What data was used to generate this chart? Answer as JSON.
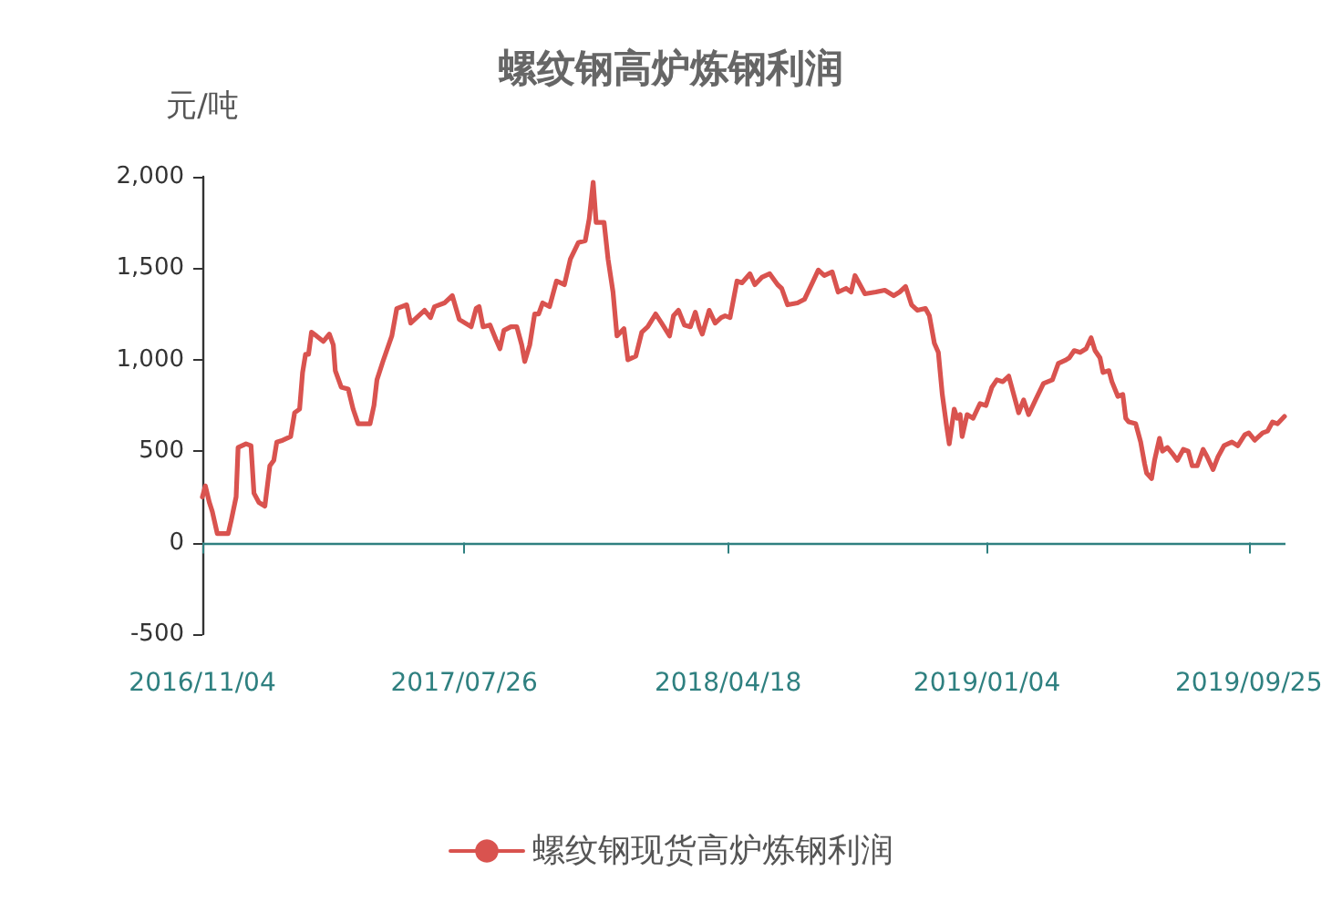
{
  "chart_data": {
    "type": "line",
    "title": "螺纹钢高炉炼钢利润",
    "ylabel": "元/吨",
    "x": [
      "2016-11-04",
      "2016-11-07",
      "2016-11-11",
      "2016-11-14",
      "2016-11-19",
      "2016-11-30",
      "2016-12-03",
      "2016-12-08",
      "2016-12-10",
      "2016-12-18",
      "2016-12-23",
      "2016-12-26",
      "2016-12-31",
      "2017-01-06",
      "2017-01-11",
      "2017-01-15",
      "2017-01-18",
      "2017-01-24",
      "2017-02-01",
      "2017-02-05",
      "2017-02-10",
      "2017-02-13",
      "2017-02-16",
      "2017-02-19",
      "2017-02-22",
      "2017-02-27",
      "2017-03-06",
      "2017-03-12",
      "2017-03-16",
      "2017-03-18",
      "2017-03-24",
      "2017-03-31",
      "2017-04-05",
      "2017-04-10",
      "2017-04-17",
      "2017-04-22",
      "2017-04-26",
      "2017-04-29",
      "2017-05-05",
      "2017-05-14",
      "2017-05-19",
      "2017-05-29",
      "2017-06-02",
      "2017-06-08",
      "2017-06-16",
      "2017-06-22",
      "2017-06-26",
      "2017-07-06",
      "2017-07-14",
      "2017-07-21",
      "2017-07-27",
      "2017-08-02",
      "2017-08-07",
      "2017-08-10",
      "2017-08-14",
      "2017-08-21",
      "2017-08-27",
      "2017-08-31",
      "2017-09-04",
      "2017-09-11",
      "2017-09-17",
      "2017-09-22",
      "2017-09-25",
      "2017-09-30",
      "2017-10-05",
      "2017-10-09",
      "2017-10-13",
      "2017-10-20",
      "2017-10-27",
      "2017-11-04",
      "2017-11-10",
      "2017-11-18",
      "2017-11-25",
      "2017-11-29",
      "2017-12-03",
      "2017-12-06",
      "2017-12-14",
      "2017-12-18",
      "2017-12-23",
      "2017-12-27",
      "2018-01-03",
      "2018-01-07",
      "2018-01-15",
      "2018-01-21",
      "2018-01-27",
      "2018-02-04",
      "2018-02-10",
      "2018-02-18",
      "2018-02-22",
      "2018-02-27",
      "2018-03-05",
      "2018-03-11",
      "2018-03-16",
      "2018-03-20",
      "2018-03-23",
      "2018-03-30",
      "2018-04-05",
      "2018-04-11",
      "2018-04-15",
      "2018-04-20",
      "2018-04-27",
      "2018-05-02",
      "2018-05-10",
      "2018-05-15",
      "2018-05-22",
      "2018-05-30",
      "2018-06-07",
      "2018-06-11",
      "2018-06-17",
      "2018-06-27",
      "2018-07-04",
      "2018-07-12",
      "2018-07-18",
      "2018-07-24",
      "2018-08-01",
      "2018-08-07",
      "2018-08-15",
      "2018-08-20",
      "2018-08-24",
      "2018-09-03",
      "2018-09-14",
      "2018-09-23",
      "2018-10-02",
      "2018-10-08",
      "2018-10-14",
      "2018-10-20",
      "2018-10-26",
      "2018-11-03",
      "2018-11-07",
      "2018-11-12",
      "2018-11-16",
      "2018-11-20",
      "2018-11-24",
      "2018-11-27",
      "2018-12-02",
      "2018-12-05",
      "2018-12-08",
      "2018-12-10",
      "2018-12-15",
      "2018-12-21",
      "2018-12-28",
      "2019-01-03",
      "2019-01-09",
      "2019-01-14",
      "2019-01-20",
      "2019-01-26",
      "2019-01-30",
      "2019-02-05",
      "2019-02-10",
      "2019-02-15",
      "2019-02-22",
      "2019-03-02",
      "2019-03-11",
      "2019-03-17",
      "2019-03-25",
      "2019-03-28",
      "2019-04-02",
      "2019-04-08",
      "2019-04-14",
      "2019-04-19",
      "2019-04-23",
      "2019-04-28",
      "2019-05-01",
      "2019-05-07",
      "2019-05-10",
      "2019-05-16",
      "2019-05-21",
      "2019-05-24",
      "2019-05-27",
      "2019-06-03",
      "2019-06-08",
      "2019-06-12",
      "2019-06-14",
      "2019-06-19",
      "2019-06-22",
      "2019-06-27",
      "2019-06-30",
      "2019-07-05",
      "2019-07-11",
      "2019-07-15",
      "2019-07-21",
      "2019-07-26",
      "2019-07-30",
      "2019-08-04",
      "2019-08-10",
      "2019-08-14",
      "2019-08-20",
      "2019-08-25",
      "2019-08-31",
      "2019-09-08",
      "2019-09-14",
      "2019-09-21",
      "2019-09-25",
      "2019-10-01",
      "2019-10-09",
      "2019-10-14",
      "2019-10-19",
      "2019-10-24",
      "2019-10-31"
    ],
    "series": [
      {
        "name": "螺纹钢现货高炉炼钢利润",
        "color": "#d9534f",
        "values": [
          250,
          310,
          220,
          170,
          50,
          50,
          120,
          250,
          520,
          540,
          530,
          270,
          220,
          200,
          420,
          450,
          550,
          560,
          580,
          710,
          730,
          930,
          1030,
          1030,
          1150,
          1130,
          1100,
          1140,
          1080,
          940,
          850,
          840,
          730,
          650,
          650,
          650,
          750,
          890,
          990,
          1130,
          1280,
          1300,
          1200,
          1230,
          1270,
          1230,
          1290,
          1310,
          1350,
          1220,
          1200,
          1180,
          1280,
          1290,
          1180,
          1190,
          1110,
          1060,
          1160,
          1180,
          1180,
          1080,
          990,
          1080,
          1250,
          1250,
          1310,
          1290,
          1430,
          1410,
          1550,
          1640,
          1650,
          1770,
          1970,
          1750,
          1750,
          1550,
          1370,
          1130,
          1170,
          1000,
          1020,
          1150,
          1180,
          1250,
          1200,
          1130,
          1240,
          1270,
          1190,
          1180,
          1260,
          1180,
          1140,
          1270,
          1200,
          1230,
          1240,
          1230,
          1430,
          1420,
          1470,
          1410,
          1450,
          1470,
          1410,
          1390,
          1300,
          1310,
          1330,
          1420,
          1490,
          1460,
          1480,
          1370,
          1390,
          1370,
          1460,
          1360,
          1370,
          1380,
          1350,
          1370,
          1400,
          1300,
          1270,
          1280,
          1240,
          1090,
          1040,
          810,
          650,
          540,
          730,
          680,
          700,
          580,
          700,
          680,
          760,
          750,
          850,
          890,
          880,
          910,
          830,
          710,
          780,
          700,
          780,
          870,
          890,
          980,
          1000,
          1010,
          1050,
          1040,
          1060,
          1120,
          1050,
          1010,
          930,
          940,
          880,
          800,
          810,
          680,
          660,
          650,
          550,
          430,
          380,
          350,
          450,
          570,
          500,
          520,
          480,
          450,
          510,
          500,
          420,
          420,
          510,
          470,
          400,
          470,
          530,
          550,
          530,
          590,
          600,
          560,
          600,
          610,
          660,
          650,
          690
        ]
      }
    ],
    "xlim": [
      "2016-11-04",
      "2019-11-01"
    ],
    "xticks": [
      {
        "value": "2016-11-04",
        "label": "2016/11/04"
      },
      {
        "value": "2017-07-26",
        "label": "2017/07/26"
      },
      {
        "value": "2018-04-18",
        "label": "2018/04/18"
      },
      {
        "value": "2019-01-04",
        "label": "2019/01/04"
      },
      {
        "value": "2019-09-25",
        "label": "2019/09/25"
      }
    ],
    "ylim": [
      -500,
      2000
    ],
    "yticks": [
      -500,
      0,
      500,
      {
        "value": 1000,
        "label": "1,000"
      },
      {
        "value": 1500,
        "label": "1,500"
      },
      {
        "value": 2000,
        "label": "2,000"
      }
    ],
    "ref_lines": [
      {
        "axis": "y",
        "value": 0,
        "color": "#2f8080"
      }
    ],
    "marker": "none",
    "legend": "bottom"
  }
}
